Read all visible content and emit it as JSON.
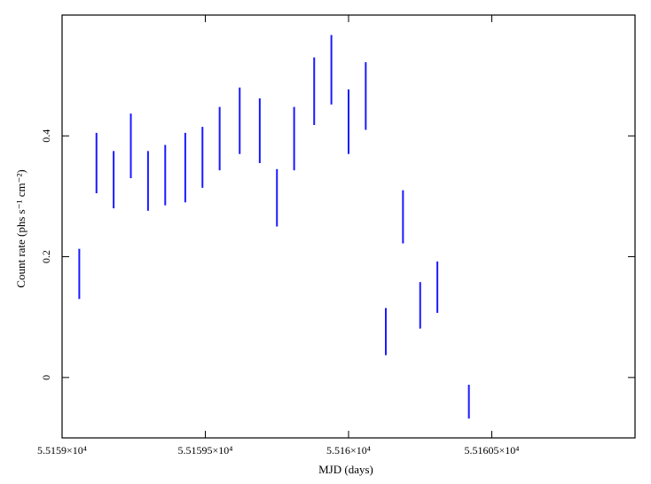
{
  "chart_data": {
    "type": "scatter",
    "title": "",
    "xlabel": "MJD (days)",
    "ylabel": "Count rate (phs s⁻¹ cm⁻²)",
    "xlim": [
      55159.0,
      55161.0
    ],
    "ylim": [
      -0.1,
      0.6
    ],
    "xticks": [
      55159.0,
      55159.5,
      55160.0,
      55160.5
    ],
    "xtick_labels": [
      "5.5159×10⁴",
      "5.51595×10⁴",
      "5.516×10⁴",
      "5.51605×10⁴"
    ],
    "yticks": [
      0,
      0.2,
      0.4
    ],
    "ytick_labels": [
      "0",
      "0.2",
      "0.4"
    ],
    "grid": false,
    "series": [
      {
        "color": "#1a1aff",
        "marker": "vertical error bar",
        "points": [
          {
            "x": 55159.06,
            "y_low": 0.13,
            "y_high": 0.213
          },
          {
            "x": 55159.12,
            "y_low": 0.305,
            "y_high": 0.405
          },
          {
            "x": 55159.18,
            "y_low": 0.28,
            "y_high": 0.375
          },
          {
            "x": 55159.24,
            "y_low": 0.33,
            "y_high": 0.437
          },
          {
            "x": 55159.3,
            "y_low": 0.276,
            "y_high": 0.375
          },
          {
            "x": 55159.36,
            "y_low": 0.285,
            "y_high": 0.385
          },
          {
            "x": 55159.43,
            "y_low": 0.29,
            "y_high": 0.405
          },
          {
            "x": 55159.49,
            "y_low": 0.314,
            "y_high": 0.415
          },
          {
            "x": 55159.55,
            "y_low": 0.343,
            "y_high": 0.448
          },
          {
            "x": 55159.62,
            "y_low": 0.37,
            "y_high": 0.48
          },
          {
            "x": 55159.69,
            "y_low": 0.355,
            "y_high": 0.462
          },
          {
            "x": 55159.75,
            "y_low": 0.25,
            "y_high": 0.345
          },
          {
            "x": 55159.81,
            "y_low": 0.343,
            "y_high": 0.448
          },
          {
            "x": 55159.88,
            "y_low": 0.418,
            "y_high": 0.53
          },
          {
            "x": 55159.94,
            "y_low": 0.452,
            "y_high": 0.567
          },
          {
            "x": 55160.0,
            "y_low": 0.37,
            "y_high": 0.477
          },
          {
            "x": 55160.06,
            "y_low": 0.41,
            "y_high": 0.522
          },
          {
            "x": 55160.13,
            "y_low": 0.037,
            "y_high": 0.115
          },
          {
            "x": 55160.19,
            "y_low": 0.222,
            "y_high": 0.31
          },
          {
            "x": 55160.25,
            "y_low": 0.081,
            "y_high": 0.158
          },
          {
            "x": 55160.31,
            "y_low": 0.107,
            "y_high": 0.192
          },
          {
            "x": 55160.42,
            "y_low": -0.068,
            "y_high": -0.012
          }
        ]
      }
    ]
  }
}
